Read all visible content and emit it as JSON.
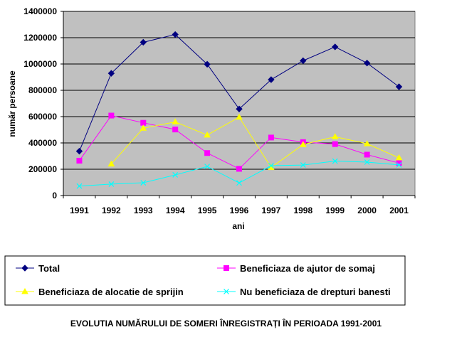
{
  "chart_data": {
    "type": "line",
    "title": "EVOLUTIA NUMĂRULUI DE SOMERI ÎNREGISTRAȚI ÎN PERIOADA 1991-2001",
    "xlabel": "ani",
    "ylabel": "număr persoane",
    "categories": [
      "1991",
      "1992",
      "1993",
      "1994",
      "1995",
      "1996",
      "1997",
      "1998",
      "1999",
      "2000",
      "2001"
    ],
    "ylim": [
      0,
      1400000
    ],
    "yticks": [
      0,
      200000,
      400000,
      600000,
      800000,
      1000000,
      1200000,
      1400000
    ],
    "grid": true,
    "legend_position": "bottom",
    "plot_background": "#c0c0c0",
    "series": [
      {
        "name": "Total",
        "color": "#000080",
        "marker": "diamond",
        "values": [
          337000,
          929000,
          1165000,
          1224000,
          998000,
          658000,
          881000,
          1025000,
          1130000,
          1007000,
          827000
        ]
      },
      {
        "name": "Beneficiaza de ajutor de somaj",
        "color": "#ff00ff",
        "marker": "square",
        "values": [
          265000,
          608000,
          553000,
          502000,
          323000,
          203000,
          441000,
          406000,
          391000,
          311000,
          247000
        ]
      },
      {
        "name": "Beneficiaza de alocatie de sprijin",
        "color": "#ffff00",
        "marker": "triangle",
        "values": [
          null,
          240000,
          512000,
          560000,
          460000,
          596000,
          213000,
          388000,
          447000,
          394000,
          287000
        ]
      },
      {
        "name": "Nu beneficiaza de drepturi banesti",
        "color": "#00ffff",
        "marker": "x",
        "values": [
          72000,
          87000,
          97000,
          157000,
          221000,
          96000,
          227000,
          232000,
          262000,
          254000,
          233000
        ]
      }
    ]
  }
}
